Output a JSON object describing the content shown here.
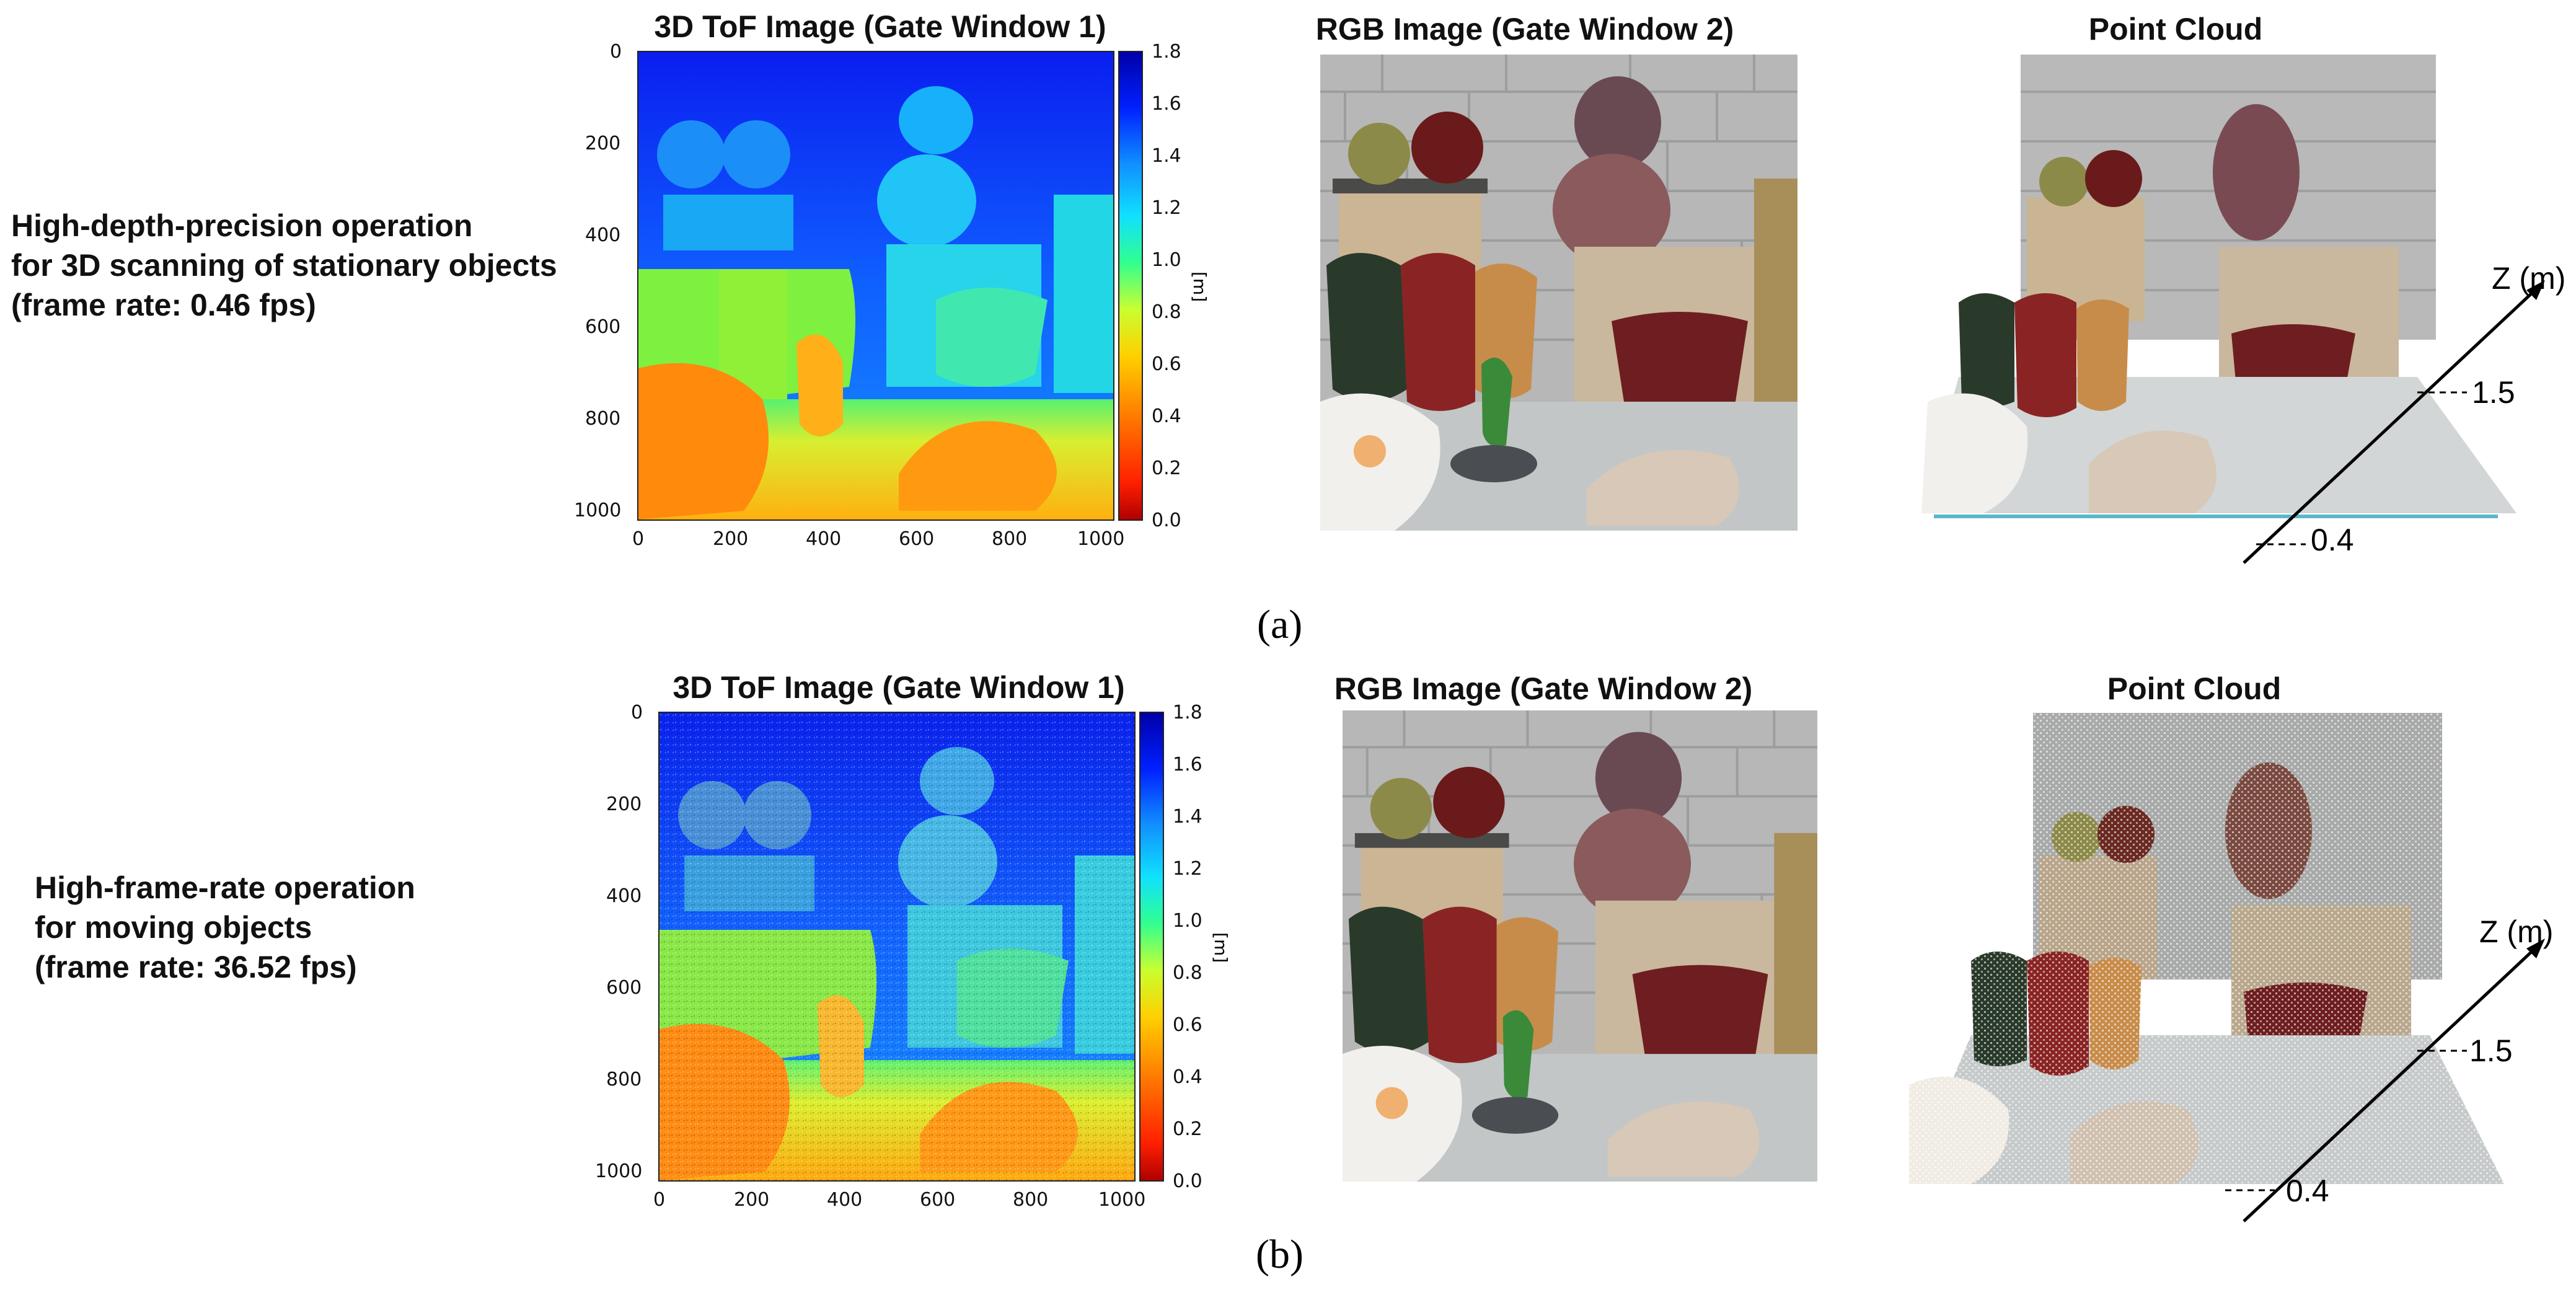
{
  "rows": [
    {
      "id": "a",
      "label_lines": [
        "High-depth-precision operation",
        "for 3D scanning of stationary objects",
        "(frame rate: 0.46 fps)"
      ],
      "tof_title": "3D ToF Image (Gate Window 1)",
      "rgb_title": "RGB Image (Gate Window 2)",
      "cloud_title": "Point Cloud",
      "caption": "(a)",
      "z_label": "Z (m)",
      "z_far": "1.5",
      "z_near": "0.4"
    },
    {
      "id": "b",
      "label_lines": [
        "High-frame-rate operation",
        "for moving objects",
        "(frame rate: 36.52 fps)"
      ],
      "tof_title": "3D ToF Image (Gate Window 1)",
      "rgb_title": "RGB Image (Gate Window 2)",
      "cloud_title": "Point Cloud",
      "caption": "(b)",
      "z_label": "Z (m)",
      "z_far": "1.5",
      "z_near": "0.4"
    }
  ],
  "tof_axes": {
    "x_ticks": [
      "0",
      "200",
      "400",
      "600",
      "800",
      "1000"
    ],
    "y_ticks": [
      "0",
      "200",
      "400",
      "600",
      "800",
      "1000"
    ],
    "colorbar_ticks": [
      "1.8",
      "1.6",
      "1.4",
      "1.2",
      "1.0",
      "0.8",
      "0.6",
      "0.4",
      "0.2",
      "0.0"
    ],
    "colorbar_label": "[m]"
  },
  "colors": {
    "far": "#0a2cf0",
    "mid": "#1ec8f0",
    "near_green": "#7ef040",
    "near_orange": "#ff8a10"
  }
}
